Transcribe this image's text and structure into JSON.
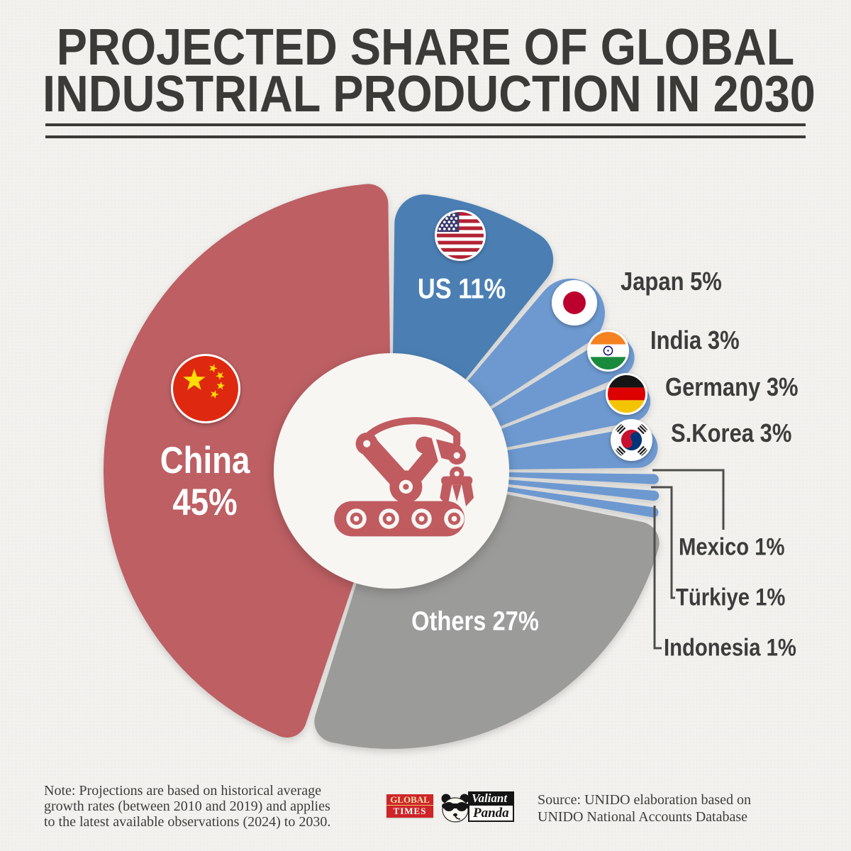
{
  "header": {
    "title_line1": "PROJECTED SHARE OF GLOBAL",
    "title_line2": "INDUSTRIAL PRODUCTION IN 2030"
  },
  "chart_data": {
    "type": "pie",
    "title": "Projected share of global industrial production in 2030",
    "unit": "percent share",
    "order": "clockwise from 12 o'clock",
    "segments": [
      {
        "name": "US",
        "value": 11,
        "label": "US 11%",
        "color": "#4c7fb4",
        "flag": "us"
      },
      {
        "name": "Japan",
        "value": 5,
        "label": "Japan 5%",
        "color": "#6d99d0",
        "flag": "japan"
      },
      {
        "name": "India",
        "value": 3,
        "label": "India 3%",
        "color": "#6d99d0",
        "flag": "india"
      },
      {
        "name": "Germany",
        "value": 3,
        "label": "Germany 3%",
        "color": "#6d99d0",
        "flag": "germany"
      },
      {
        "name": "S.Korea",
        "value": 3,
        "label": "S.Korea 3%",
        "color": "#6d99d0",
        "flag": "south-korea"
      },
      {
        "name": "Mexico",
        "value": 1,
        "label": "Mexico 1%",
        "color": "#6d99d0"
      },
      {
        "name": "Türkiye",
        "value": 1,
        "label": "Türkiye 1%",
        "color": "#6d99d0"
      },
      {
        "name": "Indonesia",
        "value": 1,
        "label": "Indonesia 1%",
        "color": "#6d99d0"
      },
      {
        "name": "Others",
        "value": 27,
        "label": "Others 27%",
        "color": "#9b9b9a"
      },
      {
        "name": "China",
        "value": 45,
        "label": "China 45%",
        "value_label": "45%",
        "color": "#bd5f63",
        "flag": "china"
      }
    ],
    "layout": {
      "center": [
        552,
        664
      ],
      "hole_radius": 166,
      "inner_radius": 118,
      "gap_degrees": 0.7,
      "outer_radius": [
        393,
        385,
        381,
        379,
        377,
        377,
        379,
        381,
        392,
        406
      ],
      "corner_radius": [
        42,
        55,
        40,
        40,
        40,
        15,
        15,
        15,
        30,
        28
      ],
      "legend": "labels placed around chart with leader lines for 1% segments"
    }
  },
  "footer": {
    "note_line1": "Note: Projections are based on historical average",
    "note_line2": "growth rates (between 2010 and 2019) and applies",
    "note_line3": "to the latest available observations (2024) to 2030.",
    "source_line1": "Source: UNIDO elaboration based on",
    "source_line2": "UNIDO National Accounts Database",
    "logo_globaltimes_line1": "GLOBAL",
    "logo_globaltimes_line2": "TIMES",
    "logo_panda_line1": "Valiant",
    "logo_panda_line2": "Panda"
  },
  "colors": {
    "background": "#f2f1ee",
    "title_text": "#3b3a39",
    "china_red": "#bd5f63",
    "us_blue": "#4c7fb4",
    "light_blue": "#6d99d0",
    "others_gray": "#9b9b9a",
    "robot_icon_red": "#c05b60",
    "leader_line": "#4d4d4d"
  }
}
